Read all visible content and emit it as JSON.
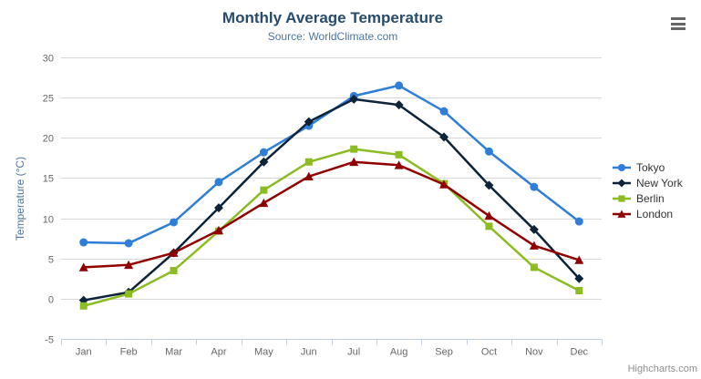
{
  "header": {
    "title": "Monthly Average Temperature",
    "subtitle": "Source: WorldClimate.com"
  },
  "menu": {
    "icon": "hamburger-icon"
  },
  "credits": {
    "label": "Highcharts.com"
  },
  "colors": {
    "title": "#274b6d",
    "subtitle": "#4d759e",
    "axis_title": "#4d759e",
    "axis_labels": "#666666",
    "grid_line": "#d8d8d8",
    "axis_line": "#c0d0e0",
    "legend_text": "#333333",
    "credits_text": "#909090",
    "menu_icon": "#666666"
  },
  "chart_data": {
    "type": "line",
    "title": "Monthly Average Temperature",
    "subtitle": "Source: WorldClimate.com",
    "xlabel": "",
    "ylabel": "Temperature (°C)",
    "ylim": [
      -5,
      30
    ],
    "ytick_step": 5,
    "yticks": [
      -5,
      0,
      5,
      10,
      15,
      20,
      25,
      30
    ],
    "grid": true,
    "legend_position": "right",
    "categories": [
      "Jan",
      "Feb",
      "Mar",
      "Apr",
      "May",
      "Jun",
      "Jul",
      "Aug",
      "Sep",
      "Oct",
      "Nov",
      "Dec"
    ],
    "series": [
      {
        "name": "Tokyo",
        "color": "#2f7ed8",
        "marker": "circle",
        "values": [
          7.0,
          6.9,
          9.5,
          14.5,
          18.2,
          21.5,
          25.2,
          26.5,
          23.3,
          18.3,
          13.9,
          9.6
        ]
      },
      {
        "name": "New York",
        "color": "#0d233a",
        "marker": "diamond",
        "values": [
          -0.2,
          0.8,
          5.7,
          11.3,
          17.0,
          22.0,
          24.8,
          24.1,
          20.1,
          14.1,
          8.6,
          2.5
        ]
      },
      {
        "name": "Berlin",
        "color": "#8bbc21",
        "marker": "square",
        "values": [
          -0.9,
          0.6,
          3.5,
          8.4,
          13.5,
          17.0,
          18.6,
          17.9,
          14.3,
          9.0,
          3.9,
          1.0
        ]
      },
      {
        "name": "London",
        "color": "#910000",
        "marker": "triangle",
        "values": [
          3.9,
          4.2,
          5.7,
          8.5,
          11.9,
          15.2,
          17.0,
          16.6,
          14.2,
          10.3,
          6.6,
          4.8
        ]
      }
    ]
  }
}
